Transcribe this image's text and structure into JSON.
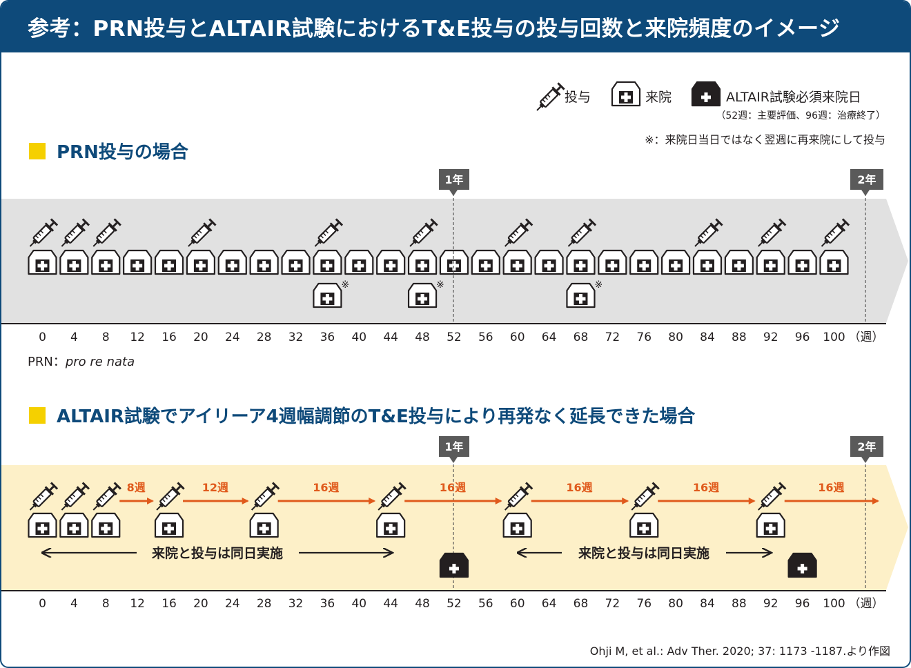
{
  "header": {
    "title": "参考：PRN投与とALTAIR試験におけるT&E投与の投与回数と来院頻度のイメージ"
  },
  "legend": {
    "injection": "投与",
    "visit": "来院",
    "mandatory_visit": "ALTAIR試験必須来院日",
    "mandatory_note": "（52週：主要評価、96週：治療終了）",
    "footnote": "※：来院日当日ではなく翌週に再来院にして投与"
  },
  "colors": {
    "header": "#0e4a7a",
    "accent_square": "#f5d000",
    "arrow": "#e05a1c",
    "prn_band": "#e1e1e1",
    "te_band": "#fdf0c8",
    "marker": "#5a5a5a"
  },
  "year_markers": {
    "year1": "1年",
    "year2": "2年",
    "year1_week": 52,
    "year2_week": 104
  },
  "axis": {
    "weeks": [
      0,
      4,
      8,
      12,
      16,
      20,
      24,
      28,
      32,
      36,
      40,
      44,
      48,
      52,
      56,
      60,
      64,
      68,
      72,
      76,
      80,
      84,
      88,
      92,
      96,
      100
    ],
    "unit": "（週）"
  },
  "prn": {
    "title": "PRN投与の場合",
    "abbr_label": "PRN：",
    "abbr_term": "pro re nata",
    "visit_weeks": [
      0,
      4,
      8,
      12,
      16,
      20,
      24,
      28,
      32,
      36,
      40,
      44,
      48,
      52,
      56,
      60,
      64,
      68,
      72,
      76,
      80,
      84,
      88,
      92,
      96,
      100
    ],
    "injection_weeks": [
      0,
      4,
      8,
      20,
      36,
      48,
      60,
      68,
      84,
      92,
      100
    ],
    "revisit_weeks": [
      36,
      48,
      68
    ],
    "revisit_mark": "※"
  },
  "te": {
    "title": "ALTAIR試験でアイリーア4週幅調節のT&E投与により再発なく延長できた場合",
    "injection_weeks": [
      0,
      4,
      8,
      16,
      28,
      44,
      60,
      76,
      92
    ],
    "intervals": [
      {
        "label": "8週",
        "from": 8,
        "to": 16
      },
      {
        "label": "12週",
        "from": 16,
        "to": 28
      },
      {
        "label": "16週",
        "from": 28,
        "to": 44
      },
      {
        "label": "16週",
        "from": 44,
        "to": 60
      },
      {
        "label": "16週",
        "from": 60,
        "to": 76
      },
      {
        "label": "16週",
        "from": 76,
        "to": 92
      },
      {
        "label": "16週",
        "from": 92,
        "to": 108
      }
    ],
    "same_day_label": "来院と投与は同日実施",
    "mandatory_weeks": [
      52,
      96
    ]
  },
  "citation": "Ohji M, et al.: Adv Ther. 2020; 37: 1173 -1187.より作図"
}
